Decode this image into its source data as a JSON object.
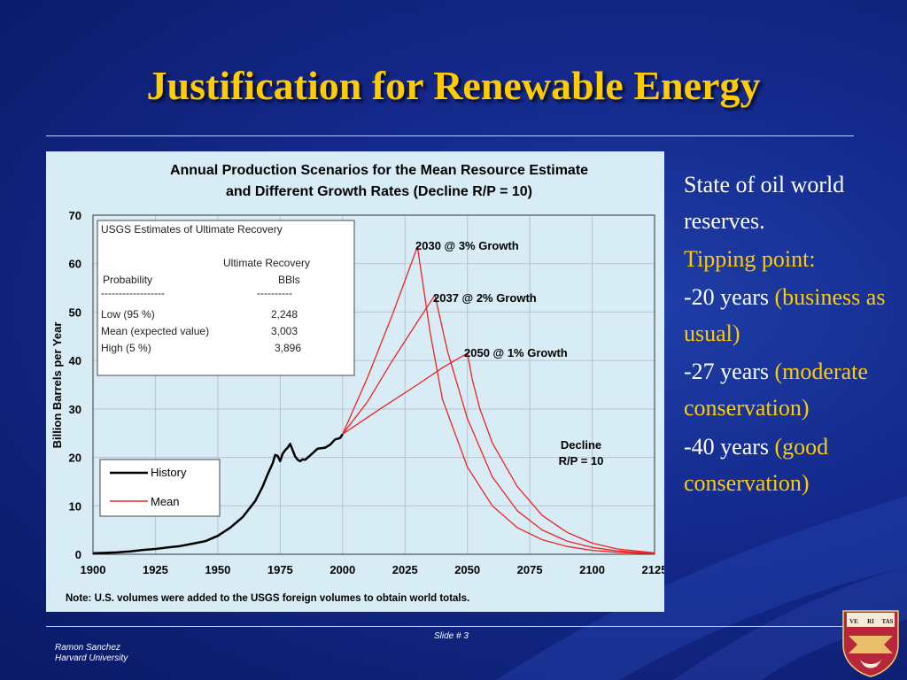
{
  "slide": {
    "title": "Justification for Renewable Energy",
    "slide_number": "Slide # 3",
    "author_name": "Ramon Sanchez",
    "author_affiliation": "Harvard University",
    "crest_motto": [
      "VE",
      "RI",
      "TAS"
    ]
  },
  "bullets": [
    {
      "runs": [
        {
          "text": "State of  oil world reserves.",
          "color": "white"
        }
      ]
    },
    {
      "runs": [
        {
          "text": "Tipping point:",
          "color": "yellow"
        }
      ]
    },
    {
      "runs": [
        {
          "text": "-20 years ",
          "color": "white"
        },
        {
          "text": "(business as usual)",
          "color": "yellow"
        }
      ]
    },
    {
      "runs": [
        {
          "text": "-27 years ",
          "color": "white"
        },
        {
          "text": "(moderate conservation)",
          "color": "yellow"
        }
      ]
    },
    {
      "runs": [
        {
          "text": "-40 years ",
          "color": "white"
        },
        {
          "text": "(good conservation)",
          "color": "yellow"
        }
      ]
    }
  ],
  "chart_data": {
    "type": "line",
    "title": "Annual Production Scenarios for the Mean Resource Estimate",
    "subtitle": "and Different Growth Rates (Decline R/P = 10)",
    "xlabel": "",
    "ylabel": "Billion Barrels per Year",
    "xlim": [
      1900,
      2125
    ],
    "ylim": [
      0,
      70
    ],
    "x_ticks": [
      "1900",
      "1925",
      "1950",
      "1975",
      "2000",
      "2025",
      "2050",
      "2075",
      "2100",
      "2125"
    ],
    "y_ticks": [
      "0",
      "10",
      "20",
      "30",
      "40",
      "50",
      "60",
      "70"
    ],
    "grid": true,
    "legend": {
      "placement": "bottom-left",
      "entries": [
        {
          "label": "History",
          "color": "#000000"
        },
        {
          "label": "Mean",
          "color": "#ee2222"
        }
      ]
    },
    "series": [
      {
        "name": "History",
        "color": "#000000",
        "points": [
          [
            1900,
            0.2
          ],
          [
            1905,
            0.3
          ],
          [
            1910,
            0.4
          ],
          [
            1915,
            0.6
          ],
          [
            1920,
            0.9
          ],
          [
            1925,
            1.1
          ],
          [
            1930,
            1.4
          ],
          [
            1935,
            1.7
          ],
          [
            1940,
            2.2
          ],
          [
            1945,
            2.7
          ],
          [
            1950,
            3.8
          ],
          [
            1955,
            5.5
          ],
          [
            1960,
            7.7
          ],
          [
            1965,
            11
          ],
          [
            1968,
            14
          ],
          [
            1970,
            16.5
          ],
          [
            1972,
            18.8
          ],
          [
            1973,
            20.5
          ],
          [
            1974,
            20.3
          ],
          [
            1975,
            19.2
          ],
          [
            1976,
            20.8
          ],
          [
            1977,
            21.5
          ],
          [
            1978,
            22
          ],
          [
            1979,
            22.8
          ],
          [
            1980,
            21.5
          ],
          [
            1981,
            20.2
          ],
          [
            1982,
            19.5
          ],
          [
            1983,
            19.2
          ],
          [
            1984,
            19.6
          ],
          [
            1985,
            19.5
          ],
          [
            1987,
            20.4
          ],
          [
            1990,
            21.8
          ],
          [
            1993,
            22
          ],
          [
            1995,
            22.6
          ],
          [
            1997,
            23.7
          ],
          [
            1999,
            24
          ],
          [
            2000,
            24.8
          ]
        ]
      },
      {
        "name": "",
        "color": "#ee2222",
        "points": [
          [
            2000,
            24.8
          ],
          [
            2010,
            36.5
          ],
          [
            2020,
            49.5
          ],
          [
            2030,
            63.5
          ],
          [
            2035,
            46
          ],
          [
            2040,
            32
          ],
          [
            2050,
            18
          ],
          [
            2060,
            10
          ],
          [
            2070,
            5.5
          ],
          [
            2080,
            3
          ],
          [
            2090,
            1.6
          ],
          [
            2100,
            0.8
          ],
          [
            2110,
            0.4
          ],
          [
            2125,
            0.1
          ]
        ]
      },
      {
        "name": "",
        "color": "#ee2222",
        "points": [
          [
            2000,
            24.8
          ],
          [
            2010,
            31.5
          ],
          [
            2020,
            40
          ],
          [
            2030,
            48
          ],
          [
            2037,
            53.5
          ],
          [
            2042,
            42
          ],
          [
            2050,
            28
          ],
          [
            2060,
            16
          ],
          [
            2070,
            9
          ],
          [
            2080,
            5
          ],
          [
            2090,
            2.7
          ],
          [
            2100,
            1.4
          ],
          [
            2110,
            0.7
          ],
          [
            2125,
            0.2
          ]
        ]
      },
      {
        "name": "",
        "color": "#ee2222",
        "points": [
          [
            2000,
            24.8
          ],
          [
            2015,
            30
          ],
          [
            2030,
            35
          ],
          [
            2040,
            38.5
          ],
          [
            2050,
            41.5
          ],
          [
            2052,
            36
          ],
          [
            2055,
            30
          ],
          [
            2060,
            23
          ],
          [
            2070,
            14
          ],
          [
            2080,
            8
          ],
          [
            2090,
            4.5
          ],
          [
            2100,
            2.3
          ],
          [
            2110,
            1.1
          ],
          [
            2125,
            0.3
          ]
        ]
      }
    ],
    "annotations": [
      {
        "text": "2030 @ 3% Growth",
        "x": 2030,
        "y": 63.5
      },
      {
        "text": "2037 @ 2% Growth",
        "x": 2037,
        "y": 53.5
      },
      {
        "text": "2050 @ 1% Growth",
        "x": 2050,
        "y": 41.5
      },
      {
        "text": "Decline",
        "x": 2100,
        "y": 22.5
      },
      {
        "text": "R/P = 10",
        "x": 2100,
        "y": 19.5
      }
    ],
    "table": {
      "title": "USGS Estimates of Ultimate Recovery",
      "col_header_top": "Ultimate Recovery",
      "col1_header": "Probability",
      "col2_header": "BBls",
      "dash1": "------------------",
      "dash2": "----------",
      "rows": [
        {
          "label": "Low (95 %)",
          "value": "2,248"
        },
        {
          "label": "Mean (expected value)",
          "value": "3,003"
        },
        {
          "label": "High (5 %)",
          "value": "3,896"
        }
      ]
    },
    "note": "Note:  U.S. volumes were added to the USGS foreign volumes to obtain world totals."
  }
}
